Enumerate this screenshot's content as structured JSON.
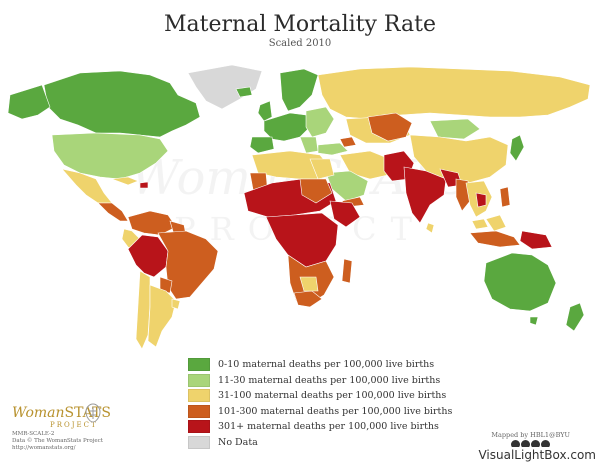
{
  "title": "Maternal Mortality Rate",
  "subtitle": "Scaled 2010",
  "colors": {
    "c0_10": "#5aa83f",
    "c11_30": "#a9d57a",
    "c31_100": "#efd36c",
    "c101_300": "#cd5e1f",
    "c301": "#b8141a",
    "nodata": "#d8d8d8"
  },
  "legend": [
    {
      "label": "0-10 maternal deaths per 100,000 live births",
      "color": "#5aa83f"
    },
    {
      "label": "11-30 maternal deaths per 100,000 live births",
      "color": "#a9d57a"
    },
    {
      "label": "31-100 maternal deaths per 100,000 live births",
      "color": "#efd36c"
    },
    {
      "label": "101-300 maternal deaths per 100,000 live births",
      "color": "#cd5e1f"
    },
    {
      "label": "301+ maternal deaths per 100,000 live births",
      "color": "#b8141a"
    },
    {
      "label": "No Data",
      "color": "#d8d8d8"
    }
  ],
  "logo": {
    "brand_a": "Woman",
    "brand_b": "STATS",
    "sub": "PROJECT"
  },
  "credits": {
    "line1": "MMR-SCALE-2",
    "line2": "Data © The WomanStats Project",
    "line3": "http://womanstats.org/"
  },
  "mapped_by": "Mapped by HBL1@BYU",
  "background_watermark": {
    "line1": "WomanSTATS",
    "line2": "PROJECT"
  },
  "site_watermark": "VisualLightBox.com"
}
